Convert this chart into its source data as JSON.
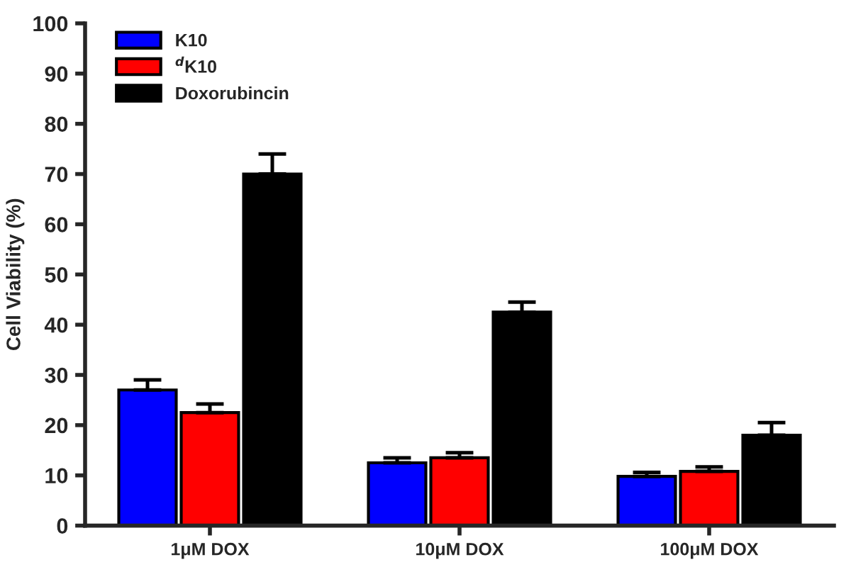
{
  "chart_data": {
    "type": "bar",
    "ylabel": "Cell Viability (%)",
    "categories": [
      "1μM DOX",
      "10μM DOX",
      "100μM DOX"
    ],
    "series": [
      {
        "name": "K10",
        "color": "#0000ff",
        "values": [
          27,
          12.5,
          9.8
        ],
        "errors": [
          [
            27,
            29
          ],
          [
            12.5,
            13.5
          ],
          [
            9.8,
            10.6
          ]
        ]
      },
      {
        "name": "$^{d}$K10",
        "color": "#ff0000",
        "values": [
          22.5,
          13.5,
          10.8
        ],
        "errors": [
          [
            22.5,
            24.2
          ],
          [
            13.5,
            14.5
          ],
          [
            10.8,
            11.7
          ]
        ]
      },
      {
        "name": "Doxorubincin",
        "color": "#000000",
        "values": [
          70,
          42.5,
          18
        ],
        "errors": [
          [
            70,
            74
          ],
          [
            42.5,
            44.5
          ],
          [
            18,
            20.5
          ]
        ]
      }
    ],
    "ylim": [
      0,
      100
    ],
    "yticks": [
      0,
      10,
      20,
      30,
      40,
      50,
      60,
      70,
      80,
      90,
      100
    ],
    "grid": false,
    "legend": "top left"
  }
}
